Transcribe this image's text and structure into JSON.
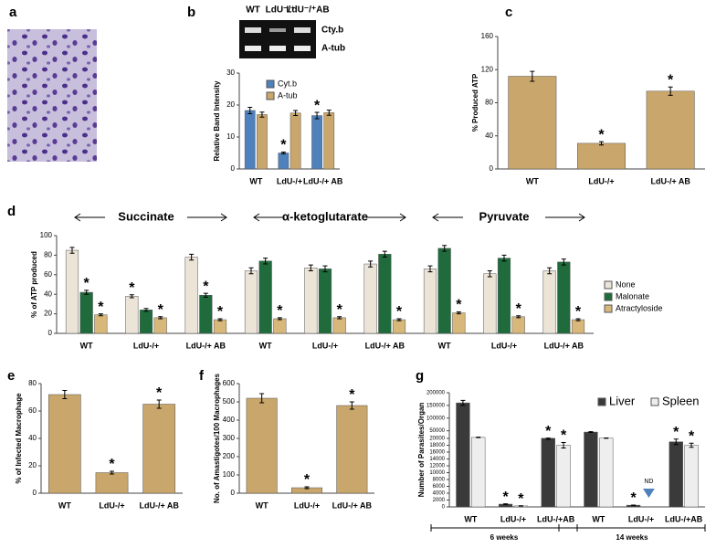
{
  "chart_data": [
    {
      "type": "image",
      "panel": "a"
    },
    {
      "type": "bar",
      "panel": "b",
      "gel": {
        "lanes": [
          "WT",
          "LdU⁻/⁺",
          "LdU⁻/⁺AB"
        ],
        "bands": [
          "Cty.b",
          "A-tub"
        ]
      },
      "ylabel": "Relative Band Intensity",
      "categories": [
        "WT",
        "LdU-/+",
        "LdU-/+ AB"
      ],
      "series": [
        {
          "name": "Cyt.b",
          "color": "#4f81bd",
          "values": [
            18.3,
            5,
            16.7
          ],
          "errors": [
            1,
            0.3,
            1
          ],
          "markers": [
            null,
            "*",
            "*"
          ]
        },
        {
          "name": "A-tub",
          "color": "#c9a66b",
          "values": [
            17,
            17.5,
            17.6
          ],
          "errors": [
            0.8,
            0.8,
            0.8
          ],
          "markers": [
            null,
            null,
            null
          ]
        }
      ],
      "ylim": [
        0,
        30
      ],
      "yticks": [
        0,
        10,
        20,
        30
      ],
      "legend": "upper center"
    },
    {
      "type": "bar",
      "panel": "c",
      "ylabel": "% Produced ATP",
      "categories": [
        "WT",
        "LdU-/+",
        "LdU-/+ AB"
      ],
      "series": [
        {
          "name": "ATP",
          "color": "#c9a66b",
          "values": [
            112,
            31,
            94
          ],
          "errors": [
            6,
            2,
            5
          ],
          "markers": [
            null,
            "*",
            "*"
          ]
        }
      ],
      "ylim": [
        0,
        160
      ],
      "yticks": [
        0,
        40,
        80,
        120,
        160
      ]
    },
    {
      "type": "bar",
      "panel": "d",
      "ylabel": "% of ATP produced",
      "groups": [
        "Succinate",
        "α-ketoglutarate",
        "Pyruvate"
      ],
      "categories": [
        "WT",
        "LdU-/+",
        "LdU-/+ AB",
        "WT",
        "LdU-/+",
        "LdU-/+ AB",
        "WT",
        "LdU-/+",
        "LdU-/+ AB"
      ],
      "series": [
        {
          "name": "None",
          "color": "#ece4d6",
          "values": [
            85,
            38,
            78,
            64,
            67,
            71,
            66,
            61,
            64
          ],
          "errors": [
            3,
            1.5,
            3,
            3,
            3,
            3,
            3,
            3,
            3
          ],
          "markers": [
            null,
            "*",
            null,
            null,
            null,
            null,
            null,
            null,
            null
          ]
        },
        {
          "name": "Malonate",
          "color": "#1f6b3c",
          "values": [
            42,
            24,
            39,
            74,
            66,
            81,
            87,
            77,
            73
          ],
          "errors": [
            2,
            1.5,
            2,
            3,
            3,
            3,
            3,
            3,
            3
          ],
          "markers": [
            "*",
            null,
            "*",
            null,
            null,
            null,
            null,
            null,
            null
          ]
        },
        {
          "name": "Atractyloside",
          "color": "#d8b77a",
          "values": [
            19,
            16,
            14,
            15,
            16,
            14,
            21,
            17,
            14
          ],
          "errors": [
            1,
            1,
            1,
            1,
            1,
            1,
            1,
            1,
            1
          ],
          "markers": [
            "*",
            "*",
            "*",
            "*",
            "*",
            "*",
            "*",
            "*",
            "*"
          ]
        }
      ],
      "ylim": [
        0,
        100
      ],
      "yticks": [
        0,
        20,
        40,
        60,
        80,
        100
      ],
      "legend": "right"
    },
    {
      "type": "bar",
      "panel": "e",
      "ylabel": "% of Infected Macrophage",
      "categories": [
        "WT",
        "LdU-/+",
        "LdU-/+ AB"
      ],
      "series": [
        {
          "name": "Infected",
          "color": "#c9a66b",
          "values": [
            72,
            15,
            65
          ],
          "errors": [
            3,
            1,
            3
          ],
          "markers": [
            null,
            "*",
            "*"
          ]
        }
      ],
      "ylim": [
        0,
        80
      ],
      "yticks": [
        0,
        20,
        40,
        60,
        80
      ]
    },
    {
      "type": "bar",
      "panel": "f",
      "ylabel": "No. of Amastigotes/100 Macrophages",
      "categories": [
        "WT",
        "LdU-/+",
        "LdU-/+ AB"
      ],
      "series": [
        {
          "name": "Amastigotes",
          "color": "#c9a66b",
          "values": [
            520,
            30,
            480
          ],
          "errors": [
            25,
            5,
            20
          ],
          "markers": [
            null,
            "*",
            "*"
          ]
        }
      ],
      "ylim": [
        0,
        600
      ],
      "yticks": [
        0,
        100,
        200,
        300,
        400,
        500,
        600
      ]
    },
    {
      "type": "bar",
      "panel": "g",
      "ylabel": "Number of Parasites/Organ",
      "weeks": [
        "6 weeks",
        "14 weeks"
      ],
      "categories": [
        "WT",
        "LdU-/+",
        "LdU-/+AB",
        "WT",
        "LdU-/+",
        "LdU-/+AB"
      ],
      "series": [
        {
          "name": "Liver",
          "color": "#3a3a3a",
          "values": [
            160000,
            800,
            20500,
            45000,
            500,
            19000
          ],
          "errors": [
            10000,
            100,
            800,
            1500,
            50,
            800
          ],
          "markers": [
            null,
            "*",
            "*",
            null,
            "*",
            "*"
          ]
        },
        {
          "name": "Spleen",
          "color": "#eeeeee",
          "values": [
            24000,
            300,
            18000,
            21000,
            null,
            18000
          ],
          "errors": [
            800,
            50,
            800,
            600,
            null,
            600
          ],
          "markers": [
            null,
            "*",
            "*",
            null,
            null,
            "*"
          ],
          "value_labels": [
            null,
            null,
            null,
            null,
            "ND",
            null
          ]
        }
      ],
      "ylim": [
        0,
        200000
      ],
      "axis_break": 20000,
      "yticks": [
        0,
        2000,
        4000,
        6000,
        8000,
        10000,
        12000,
        14000,
        16000,
        18000,
        20000,
        50000,
        100000,
        150000,
        200000
      ],
      "legend": "upper right"
    }
  ]
}
